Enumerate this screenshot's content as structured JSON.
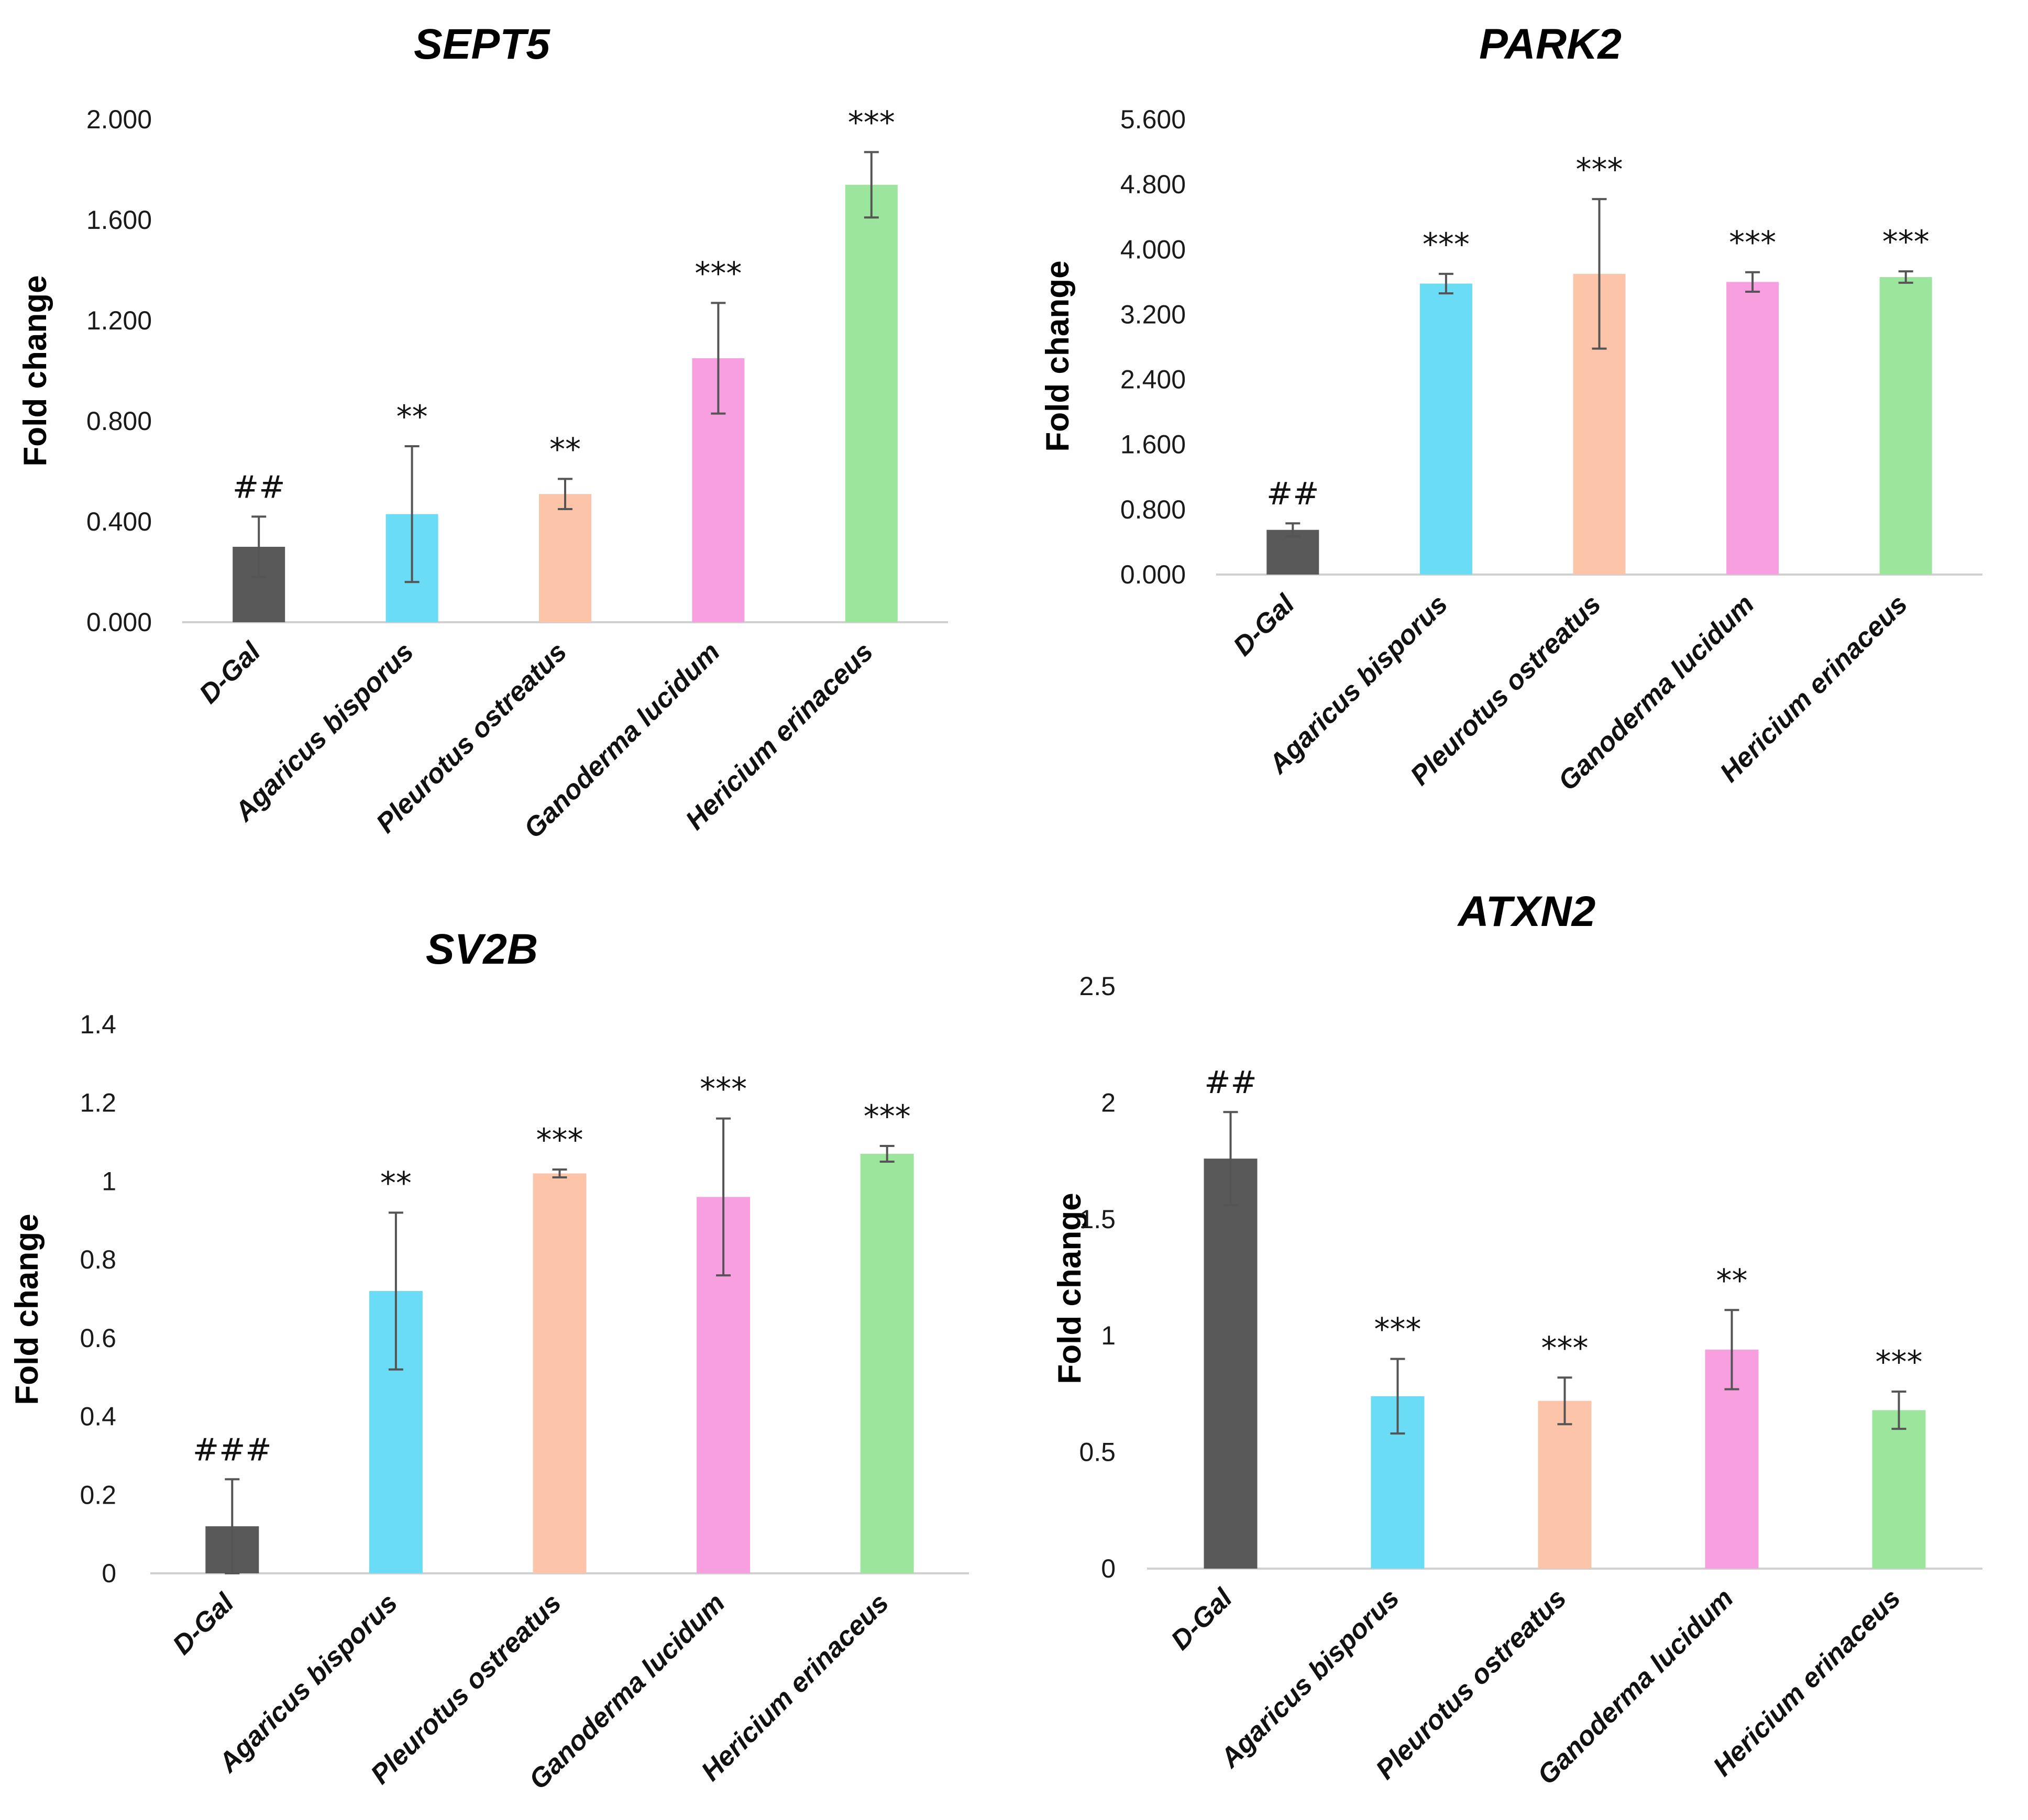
{
  "colors": [
    "#595959",
    "#6bdcf5",
    "#fcc4a8",
    "#f89fdf",
    "#9ce59c"
  ],
  "chart_data": [
    {
      "type": "bar",
      "title": "SEPT5",
      "ylabel": "Fold change",
      "xlabel": "",
      "categories": [
        "D-Gal",
        "Agaricus bisporus",
        "Pleurotus ostreatus",
        "Ganoderma lucidum",
        "Hericium erinaceus"
      ],
      "values": [
        0.3,
        0.43,
        0.51,
        1.05,
        1.74
      ],
      "errors": [
        0.12,
        0.27,
        0.06,
        0.22,
        0.13
      ],
      "significance": [
        "##",
        "**",
        "**",
        "***",
        "***"
      ],
      "ylim": [
        0,
        2.0
      ],
      "yticks": [
        0,
        0.4,
        0.8,
        1.2,
        1.6,
        2.0
      ],
      "ytick_labels": [
        "0.000",
        "0.400",
        "0.800",
        "1.200",
        "1.600",
        "2.000"
      ]
    },
    {
      "type": "bar",
      "title": "PARK2",
      "ylabel": "Fold change",
      "xlabel": "",
      "categories": [
        "D-Gal",
        "Agaricus bisporus",
        "Pleurotus ostreatus",
        "Ganoderma lucidum",
        "Hericium erinaceus"
      ],
      "values": [
        0.55,
        3.58,
        3.7,
        3.6,
        3.66
      ],
      "errors": [
        0.08,
        0.12,
        0.92,
        0.12,
        0.07
      ],
      "significance": [
        "##",
        "***",
        "***",
        "***",
        "***"
      ],
      "ylim": [
        0,
        5.6
      ],
      "yticks": [
        0,
        0.8,
        1.6,
        2.4,
        3.2,
        4.0,
        4.8,
        5.6
      ],
      "ytick_labels": [
        "0.000",
        "0.800",
        "1.600",
        "2.400",
        "3.200",
        "4.000",
        "4.800",
        "5.600"
      ]
    },
    {
      "type": "bar",
      "title": "SV2B",
      "ylabel": "Fold change",
      "xlabel": "",
      "categories": [
        "D-Gal",
        "Agaricus bisporus",
        "Pleurotus ostreatus",
        "Ganoderma lucidum",
        "Hericium erinaceus"
      ],
      "values": [
        0.12,
        0.72,
        1.02,
        0.96,
        1.07
      ],
      "errors": [
        0.12,
        0.2,
        0.01,
        0.2,
        0.02
      ],
      "significance": [
        "###",
        "**",
        "***",
        "***",
        "***"
      ],
      "ylim": [
        0,
        1.4
      ],
      "yticks": [
        0,
        0.2,
        0.4,
        0.6,
        0.8,
        1.0,
        1.2,
        1.4
      ],
      "ytick_labels": [
        "0",
        "0.2",
        "0.4",
        "0.6",
        "0.8",
        "1",
        "1.2",
        "1.4"
      ]
    },
    {
      "type": "bar",
      "title": "ATXN2",
      "ylabel": "Fold change",
      "xlabel": "",
      "categories": [
        "D-Gal",
        "Agaricus bisporus",
        "Pleurotus ostreatus",
        "Ganoderma lucidum",
        "Hericium erinaceus"
      ],
      "values": [
        1.76,
        0.74,
        0.72,
        0.94,
        0.68
      ],
      "errors": [
        0.2,
        0.16,
        0.1,
        0.17,
        0.08
      ],
      "significance": [
        "##",
        "***",
        "***",
        "**",
        "***"
      ],
      "ylim": [
        0,
        2.5
      ],
      "yticks": [
        0,
        0.5,
        1.0,
        1.5,
        2.0,
        2.5
      ],
      "ytick_labels": [
        "0",
        "0.5",
        "1",
        "1.5",
        "2",
        "2.5"
      ]
    }
  ]
}
